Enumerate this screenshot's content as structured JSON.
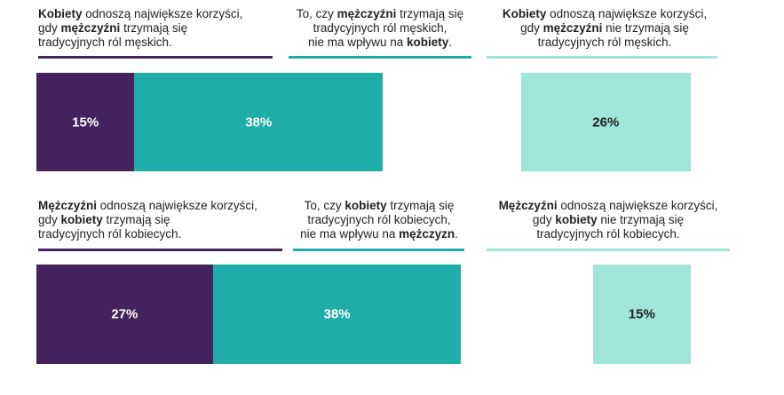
{
  "chart_data": [
    {
      "type": "bar",
      "series": [
        {
          "name": [
            {
              "text": "Kobiety",
              "bold": true
            },
            {
              "text": " odnoszą największe korzyści,\ngdy "
            },
            {
              "text": "mężczyźni",
              "bold": true
            },
            {
              "text": " trzymają się\ntradycyjnych ról męskich."
            }
          ],
          "color": "#44225e",
          "values": [
            15
          ],
          "value_labels": [
            "15%"
          ]
        },
        {
          "name": [
            {
              "text": "To, czy "
            },
            {
              "text": "mężczyźni",
              "bold": true
            },
            {
              "text": " trzymają się\ntradycyjnych ról męskich,\nnie ma wpływu na "
            },
            {
              "text": "kobiety",
              "bold": true
            },
            {
              "text": "."
            }
          ],
          "color": "#1fada9",
          "values": [
            38
          ],
          "value_labels": [
            "38%"
          ]
        },
        {
          "name": [
            {
              "text": "Kobiety",
              "bold": true
            },
            {
              "text": " odnoszą największe korzyści,\ngdy "
            },
            {
              "text": "mężczyźni",
              "bold": true
            },
            {
              "text": " nie trzymają się\ntradycyjnych ról męskich."
            }
          ],
          "color": "#9fe5d9",
          "values": [
            26
          ],
          "value_labels": [
            "26%"
          ]
        }
      ]
    },
    {
      "type": "bar",
      "series": [
        {
          "name": [
            {
              "text": "Mężczyźni",
              "bold": true
            },
            {
              "text": " odnoszą największe korzyści,\ngdy "
            },
            {
              "text": "kobiety",
              "bold": true
            },
            {
              "text": " trzymają się\ntradycyjnych ról kobiecych."
            }
          ],
          "color": "#44225e",
          "values": [
            27
          ],
          "value_labels": [
            "27%"
          ]
        },
        {
          "name": [
            {
              "text": "To, czy "
            },
            {
              "text": "kobiety",
              "bold": true
            },
            {
              "text": " trzymają się\ntradycyjnych ról kobiecych,\nnie ma wpływu na "
            },
            {
              "text": "mężczyzn",
              "bold": true
            },
            {
              "text": "."
            }
          ],
          "color": "#1fada9",
          "values": [
            38
          ],
          "value_labels": [
            "38%"
          ]
        },
        {
          "name": [
            {
              "text": "Mężczyźni",
              "bold": true
            },
            {
              "text": " odnoszą największe korzyści,\ngdy "
            },
            {
              "text": "kobiety",
              "bold": true
            },
            {
              "text": " nie trzymają się\ntradycyjnych ról kobiecych."
            }
          ],
          "color": "#9fe5d9",
          "values": [
            15
          ],
          "value_labels": [
            "15%"
          ]
        }
      ]
    }
  ]
}
